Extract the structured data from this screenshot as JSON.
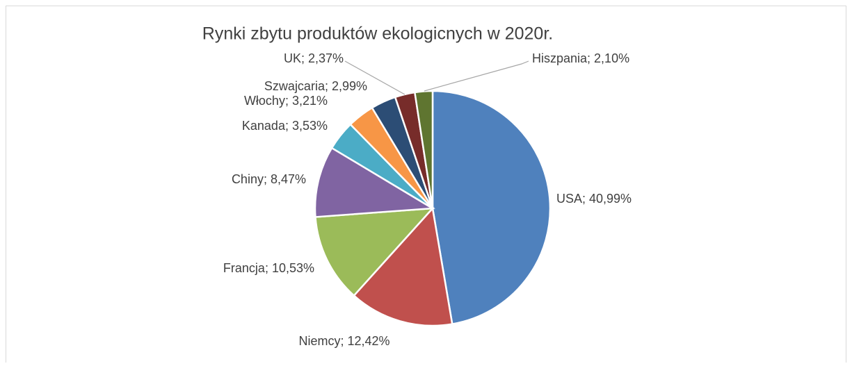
{
  "chart_data": {
    "type": "pie",
    "title": "Rynki zbytu produktów ekologicnych w 2020r.",
    "categories": [
      "USA",
      "Niemcy",
      "Francja",
      "Chiny",
      "Kanada",
      "Włochy",
      "Szwajcaria",
      "UK",
      "Hiszpania"
    ],
    "values": [
      40.99,
      12.42,
      10.53,
      8.47,
      3.53,
      3.21,
      2.99,
      2.37,
      2.1
    ],
    "value_labels": [
      "USA; 40,99%",
      "Niemcy; 12,42%",
      "Francja; 10,53%",
      "Chiny; 8,47%",
      "Kanada; 3,53%",
      "Włochy; 3,21%",
      "Szwajcaria; 2,99%",
      "UK; 2,37%",
      "Hiszpania; 2,10%"
    ],
    "colors": [
      "#4f81bd",
      "#c0504d",
      "#9bbb59",
      "#8064a2",
      "#4bacc6",
      "#f79646",
      "#2c4d75",
      "#772c2a",
      "#5f7530"
    ]
  }
}
